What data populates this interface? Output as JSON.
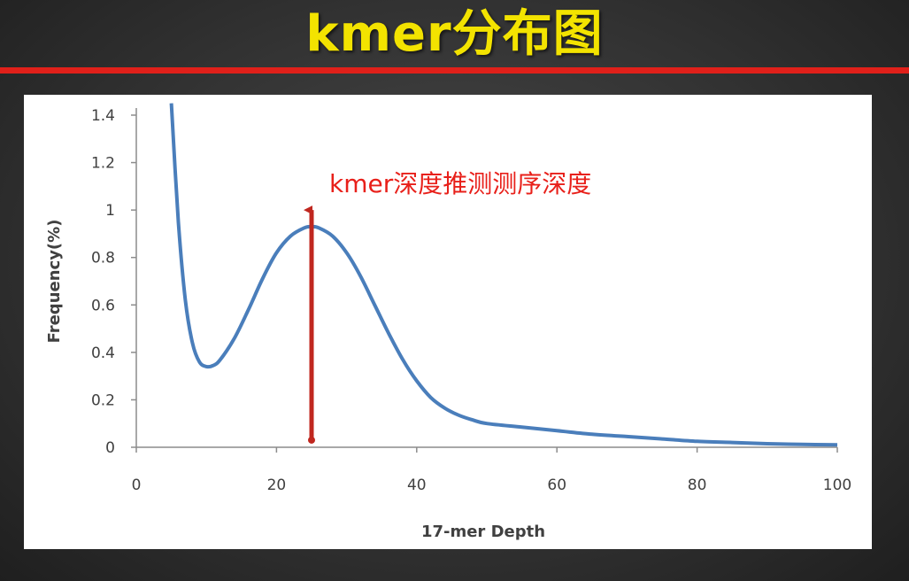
{
  "slide": {
    "title": "kmer分布图",
    "accent_color": "#e0201a",
    "title_color": "#f3e300"
  },
  "chart_data": {
    "type": "line",
    "title": "",
    "xlabel": "17-mer Depth",
    "ylabel": "Frequency(%)",
    "xlim": [
      0,
      100
    ],
    "ylim": [
      0,
      1.4
    ],
    "xticks": [
      "0",
      "20",
      "40",
      "60",
      "80",
      "100"
    ],
    "yticks": [
      "0",
      "0.2",
      "0.4",
      "0.6",
      "0.8",
      "1",
      "1.2",
      "1.4"
    ],
    "grid": false,
    "series": [
      {
        "color": "#4a7ebb",
        "x": [
          5,
          6,
          7,
          8,
          9,
          10,
          11,
          12,
          14,
          16,
          18,
          20,
          22,
          24,
          25,
          26,
          28,
          30,
          32,
          34,
          36,
          38,
          40,
          42,
          44,
          46,
          48,
          50,
          55,
          60,
          65,
          70,
          75,
          80,
          85,
          90,
          95,
          100
        ],
        "y": [
          1.45,
          0.95,
          0.62,
          0.44,
          0.36,
          0.34,
          0.345,
          0.37,
          0.46,
          0.58,
          0.71,
          0.82,
          0.89,
          0.925,
          0.93,
          0.925,
          0.89,
          0.82,
          0.72,
          0.6,
          0.48,
          0.37,
          0.28,
          0.21,
          0.165,
          0.135,
          0.115,
          0.1,
          0.085,
          0.07,
          0.055,
          0.045,
          0.035,
          0.025,
          0.02,
          0.015,
          0.012,
          0.01
        ]
      }
    ],
    "annotations": [
      {
        "text": "kmer深度推测测序深度",
        "color": "#e8201a",
        "arrow_x": 25,
        "arrow_y_from": 0.03,
        "arrow_y_to": 1.0
      }
    ]
  }
}
